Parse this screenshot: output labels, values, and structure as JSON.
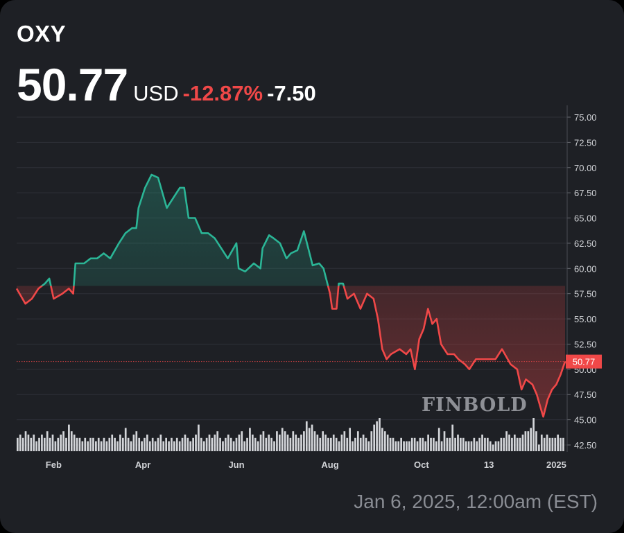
{
  "header": {
    "ticker": "OXY",
    "price": "50.77",
    "currency": "USD",
    "change_pct": "-12.87%",
    "change_abs": "-7.50"
  },
  "footer": {
    "timestamp": "Jan 6, 2025, 12:00am (EST)"
  },
  "watermark": "FINBOLD",
  "colors": {
    "up": "#2bb596",
    "down": "#f04848",
    "background": "#1e2025"
  },
  "chart_data": {
    "type": "line",
    "title": "OXY",
    "xlabel": "",
    "ylabel": "USD",
    "ylim": [
      42.5,
      75
    ],
    "yticks": [
      "42.50",
      "45.00",
      "47.50",
      "50.00",
      "52.50",
      "55.00",
      "57.50",
      "60.00",
      "62.50",
      "65.00",
      "67.50",
      "70.00",
      "72.50",
      "75.00"
    ],
    "xticks": [
      {
        "label": "Feb",
        "day": 17
      },
      {
        "label": "Apr",
        "day": 58
      },
      {
        "label": "Jun",
        "day": 101
      },
      {
        "label": "Aug",
        "day": 144
      },
      {
        "label": "Oct",
        "day": 186
      },
      {
        "label": "13",
        "day": 217
      },
      {
        "label": "2025",
        "day": 248
      }
    ],
    "baseline": 58.27,
    "last_price_label": "50.77",
    "series": [
      {
        "name": "Price",
        "days": [
          0,
          4,
          7,
          10,
          13,
          15,
          17,
          21,
          24,
          26,
          27,
          31,
          34,
          37,
          40,
          43,
          47,
          50,
          53,
          55,
          56,
          59,
          62,
          65,
          67,
          69,
          72,
          75,
          77,
          79,
          82,
          85,
          88,
          91,
          94,
          97,
          101,
          102,
          105,
          109,
          112,
          113,
          116,
          118,
          121,
          124,
          126,
          129,
          132,
          134,
          136,
          139,
          141,
          144,
          145,
          147,
          148,
          150,
          152,
          155,
          158,
          161,
          164,
          166,
          168,
          170,
          172,
          176,
          179,
          181,
          183,
          185,
          187,
          189,
          191,
          193,
          195,
          198,
          201,
          203,
          206,
          208,
          211,
          214,
          217,
          220,
          223,
          227,
          230,
          232,
          234,
          237,
          239,
          241,
          242,
          244,
          246,
          248,
          250,
          252
        ],
        "values": [
          58,
          56.5,
          57,
          58,
          58.5,
          59,
          57,
          57.5,
          58,
          57.5,
          60.5,
          60.5,
          61,
          61,
          61.5,
          61,
          62.5,
          63.5,
          64,
          64,
          66,
          68,
          69.3,
          69,
          67.5,
          66,
          67,
          68,
          68,
          65,
          65,
          63.5,
          63.5,
          63,
          62,
          61,
          62.5,
          60,
          59.7,
          60.5,
          60,
          62,
          63.3,
          63,
          62.5,
          61,
          61.5,
          61.8,
          63.7,
          62,
          60.3,
          60.5,
          60,
          57.5,
          56,
          56,
          58.5,
          58.5,
          57,
          57.5,
          56,
          57.5,
          57,
          55,
          52,
          51,
          51.5,
          52,
          51.5,
          52,
          50,
          53,
          54,
          56,
          54.5,
          55,
          52.5,
          51.5,
          51.5,
          51,
          50.5,
          50,
          51,
          51,
          51,
          51,
          52,
          50.5,
          50,
          48,
          49,
          48.5,
          47.5,
          46,
          45.3,
          47,
          48,
          48.5,
          49.5,
          50.77
        ]
      }
    ],
    "volume": [
      4,
      5,
      4,
      6,
      5,
      4,
      5,
      3,
      4,
      5,
      4,
      6,
      4,
      5,
      3,
      4,
      5,
      6,
      4,
      8,
      6,
      5,
      4,
      4,
      3,
      4,
      3,
      4,
      4,
      3,
      4,
      3,
      4,
      3,
      4,
      5,
      4,
      3,
      5,
      4,
      7,
      4,
      3,
      5,
      6,
      4,
      3,
      4,
      5,
      3,
      4,
      3,
      4,
      5,
      3,
      4,
      3,
      4,
      3,
      4,
      3,
      4,
      5,
      4,
      3,
      4,
      5,
      8,
      4,
      3,
      4,
      5,
      4,
      5,
      6,
      4,
      3,
      4,
      5,
      4,
      3,
      4,
      5,
      6,
      3,
      4,
      7,
      5,
      4,
      3,
      5,
      6,
      4,
      5,
      4,
      3,
      6,
      5,
      7,
      6,
      5,
      4,
      6,
      5,
      4,
      5,
      6,
      9,
      7,
      8,
      6,
      5,
      4,
      6,
      5,
      4,
      4,
      5,
      4,
      3,
      5,
      6,
      4,
      7,
      3,
      4,
      6,
      4,
      5,
      4,
      3,
      6,
      8,
      9,
      10,
      7,
      6,
      5,
      4,
      4,
      3,
      3,
      4,
      3,
      3,
      3,
      4,
      4,
      3,
      4,
      4,
      3,
      5,
      4,
      4,
      3,
      7,
      3,
      6,
      4,
      4,
      8,
      4,
      5,
      4,
      4,
      3,
      3,
      3,
      4,
      3,
      4,
      5,
      4,
      4,
      3,
      2,
      3,
      3,
      4,
      4,
      6,
      5,
      4,
      5,
      4,
      4,
      5,
      6,
      6,
      7,
      10,
      6,
      2,
      5,
      4,
      5,
      4,
      4,
      4,
      5,
      4,
      4
    ]
  }
}
